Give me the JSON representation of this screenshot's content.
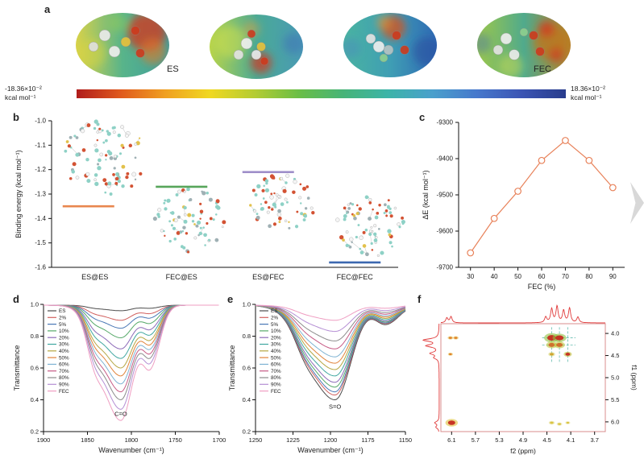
{
  "figure": {
    "panel_labels": {
      "a": "a",
      "b": "b",
      "c": "c",
      "d": "d",
      "e": "e",
      "f": "f"
    }
  },
  "panel_a": {
    "molecule_labels": {
      "es": "ES",
      "fec": "FEC"
    },
    "colorbar": {
      "min_value": "-18.36×10⁻²",
      "min_unit": "kcal mol⁻¹",
      "max_value": "18.36×10⁻²",
      "max_unit": "kcal mol⁻¹",
      "gradient": [
        "#b01c1c",
        "#e05a1e",
        "#f0a020",
        "#f0d820",
        "#b4cc32",
        "#6abe46",
        "#46b478",
        "#3cb4a8",
        "#4aa0cc",
        "#4678cc",
        "#3c55b4",
        "#283c8c"
      ]
    }
  },
  "chart_data": [
    {
      "panel": "b",
      "type": "scatter",
      "marker": "horizontal-dash",
      "ylabel": "Binding energy (kcal mol⁻¹)",
      "categories": [
        "ES@ES",
        "FEC@ES",
        "ES@FEC",
        "FEC@FEC"
      ],
      "values": [
        -1.35,
        -1.27,
        -1.21,
        -1.58
      ],
      "marker_colors": [
        "#e8874f",
        "#57a55a",
        "#9f8fc9",
        "#3c68b0"
      ],
      "ylim": [
        -1.6,
        -1.0
      ],
      "yticks": [
        -1.0,
        -1.1,
        -1.2,
        -1.3,
        -1.4,
        -1.5,
        -1.6
      ],
      "grid": false
    },
    {
      "panel": "c",
      "type": "line",
      "xlabel": "FEC (%)",
      "ylabel": "ΔE (kcal mol⁻¹)",
      "x": [
        30,
        40,
        50,
        60,
        70,
        80,
        90
      ],
      "y": [
        -9660,
        -9565,
        -9490,
        -9405,
        -9350,
        -9405,
        -9480
      ],
      "xlim": [
        25,
        95
      ],
      "ylim": [
        -9700,
        -9300
      ],
      "xticks": [
        30,
        40,
        50,
        60,
        70,
        80,
        90
      ],
      "yticks": [
        -9700,
        -9600,
        -9500,
        -9400,
        -9300
      ],
      "color": "#e8825a",
      "marker": "open-circle",
      "grid": false
    },
    {
      "panel": "d",
      "type": "line",
      "xlabel": "Wavenumber (cm⁻¹)",
      "ylabel": "Transmittance",
      "annotation": "C=O",
      "annotation_y": 0.3,
      "band_center": 1812,
      "x_reversed": true,
      "xlim": [
        1900,
        1700
      ],
      "xticks": [
        1900,
        1850,
        1800,
        1750,
        1700
      ],
      "ylim": [
        0.2,
        1.0
      ],
      "yticks": [
        1.0,
        0.8,
        0.6,
        0.4,
        0.2
      ],
      "legend_position": "inside-top-left",
      "series": [
        {
          "label": "ES",
          "color": "#4d4d4d",
          "min_transmittance": 0.96
        },
        {
          "label": "2%",
          "color": "#d1605e",
          "min_transmittance": 0.9
        },
        {
          "label": "5%",
          "color": "#4a78b5",
          "min_transmittance": 0.85
        },
        {
          "label": "10%",
          "color": "#55a868",
          "min_transmittance": 0.79
        },
        {
          "label": "20%",
          "color": "#8d6bb8",
          "min_transmittance": 0.72
        },
        {
          "label": "30%",
          "color": "#3fa7a0",
          "min_transmittance": 0.66
        },
        {
          "label": "40%",
          "color": "#b5a642",
          "min_transmittance": 0.6
        },
        {
          "label": "50%",
          "color": "#e0833a",
          "min_transmittance": 0.55
        },
        {
          "label": "60%",
          "color": "#7fb3d3",
          "min_transmittance": 0.5
        },
        {
          "label": "70%",
          "color": "#c75a85",
          "min_transmittance": 0.45
        },
        {
          "label": "80%",
          "color": "#8c8c8c",
          "min_transmittance": 0.4
        },
        {
          "label": "90%",
          "color": "#b58fd4",
          "min_transmittance": 0.34
        },
        {
          "label": "FEC",
          "color": "#ef9ec2",
          "min_transmittance": 0.27
        }
      ]
    },
    {
      "panel": "e",
      "type": "line",
      "xlabel": "Wavenumber (cm⁻¹)",
      "ylabel": "Transmittance",
      "annotation": "S=O",
      "annotation_y": 0.345,
      "band_center": 1197,
      "x_reversed": true,
      "xlim": [
        1250,
        1150
      ],
      "xticks": [
        1250,
        1225,
        1200,
        1175,
        1150
      ],
      "ylim": [
        0.2,
        1.0
      ],
      "yticks": [
        1.0,
        0.8,
        0.6,
        0.4,
        0.2
      ],
      "legend_position": "inside-top-left",
      "series": [
        {
          "label": "ES",
          "color": "#4d4d4d",
          "min_transmittance": 0.4
        },
        {
          "label": "2%",
          "color": "#d1605e",
          "min_transmittance": 0.43
        },
        {
          "label": "5%",
          "color": "#4a78b5",
          "min_transmittance": 0.45
        },
        {
          "label": "10%",
          "color": "#55a868",
          "min_transmittance": 0.48
        },
        {
          "label": "20%",
          "color": "#8d6bb8",
          "min_transmittance": 0.51
        },
        {
          "label": "30%",
          "color": "#3fa7a0",
          "min_transmittance": 0.55
        },
        {
          "label": "40%",
          "color": "#b5a642",
          "min_transmittance": 0.59
        },
        {
          "label": "50%",
          "color": "#e0833a",
          "min_transmittance": 0.63
        },
        {
          "label": "60%",
          "color": "#7fb3d3",
          "min_transmittance": 0.67
        },
        {
          "label": "70%",
          "color": "#c75a85",
          "min_transmittance": 0.72
        },
        {
          "label": "80%",
          "color": "#8c8c8c",
          "min_transmittance": 0.77
        },
        {
          "label": "90%",
          "color": "#b58fd4",
          "min_transmittance": 0.83
        },
        {
          "label": "FEC",
          "color": "#ef9ec2",
          "min_transmittance": 0.9
        }
      ]
    },
    {
      "panel": "f",
      "type": "heatmap",
      "xlabel": "f2 (ppm)",
      "ylabel": "f1 (ppm)",
      "x_reversed": true,
      "y_reversed": true,
      "xlim": [
        6.28,
        3.52
      ],
      "ylim": [
        3.78,
        6.22
      ],
      "xticks": [
        6.1,
        5.7,
        5.3,
        4.9,
        4.5,
        4.1,
        3.7
      ],
      "yticks": [
        4.0,
        4.5,
        5.0,
        5.5,
        6.0
      ],
      "spectrum_color": "#e03a3a",
      "axes_box_color": "#d98c8c",
      "guide_color": "#4ab0a0",
      "top_spectrum_peaks": [
        {
          "ppm": 6.18,
          "h": 0.3
        },
        {
          "ppm": 6.11,
          "h": 0.38
        },
        {
          "ppm": 4.52,
          "h": 0.35
        },
        {
          "ppm": 4.42,
          "h": 0.85
        },
        {
          "ppm": 4.33,
          "h": 1.0
        },
        {
          "ppm": 4.22,
          "h": 0.75
        },
        {
          "ppm": 4.12,
          "h": 0.9
        },
        {
          "ppm": 3.98,
          "h": 0.35
        }
      ],
      "left_spectrum_peaks": [
        {
          "ppm": 4.15,
          "h": 1.0
        },
        {
          "ppm": 4.28,
          "h": 0.8
        },
        {
          "ppm": 4.45,
          "h": 0.55
        },
        {
          "ppm": 4.55,
          "h": 0.3
        },
        {
          "ppm": 6.02,
          "h": 0.28
        },
        {
          "ppm": 6.12,
          "h": 0.2
        }
      ],
      "guides": {
        "vertical_f2": [
          4.42,
          4.29,
          4.15
        ],
        "horizontal_f1": [
          4.1,
          4.26
        ]
      },
      "cross_peaks": [
        {
          "f2": 4.42,
          "f1": 4.1,
          "size": 5.5,
          "inner": "#c62b1f",
          "outer": "#8fbf3f"
        },
        {
          "f2": 4.29,
          "f1": 4.1,
          "size": 5.0,
          "inner": "#c62b1f",
          "outer": "#8fbf3f"
        },
        {
          "f2": 4.42,
          "f1": 4.26,
          "size": 4.0,
          "inner": "#d06a28",
          "outer": "#bfc73f"
        },
        {
          "f2": 4.29,
          "f1": 4.26,
          "size": 4.0,
          "inner": "#d06a28",
          "outer": "#bfc73f"
        },
        {
          "f2": 4.15,
          "f1": 4.47,
          "size": 3.0,
          "inner": "#c62b1f",
          "outer": "#bfc73f"
        },
        {
          "f2": 4.42,
          "f1": 4.47,
          "size": 2.5,
          "inner": "#d0a028",
          "outer": "#d8d87c"
        },
        {
          "f2": 6.12,
          "f1": 4.1,
          "size": 2.0,
          "inner": "#e07820",
          "outer": "#e0c050"
        },
        {
          "f2": 6.03,
          "f1": 4.1,
          "size": 2.0,
          "inner": "#e07820",
          "outer": "#e0c050"
        },
        {
          "f2": 6.12,
          "f1": 4.47,
          "size": 1.8,
          "inner": "#e07820",
          "outer": "#e0c050"
        },
        {
          "f2": 6.1,
          "f1": 6.02,
          "size": 4.5,
          "inner": "#c62b1f",
          "outer": "#e0c23c"
        },
        {
          "f2": 4.42,
          "f1": 6.02,
          "size": 2.2,
          "inner": "#d8c23c",
          "outer": "#e6e09a"
        },
        {
          "f2": 4.29,
          "f1": 6.05,
          "size": 2.0,
          "inner": "#d8c23c",
          "outer": "#e6e09a"
        },
        {
          "f2": 4.15,
          "f1": 6.02,
          "size": 1.8,
          "inner": "#d8c23c",
          "outer": "#e6e09a"
        }
      ]
    }
  ]
}
